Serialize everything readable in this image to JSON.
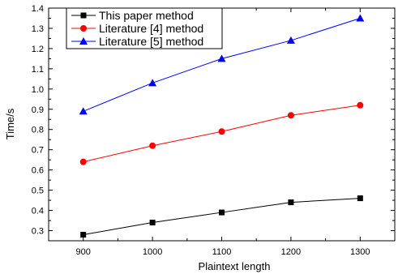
{
  "chart_data": {
    "type": "line",
    "title": "",
    "xlabel": "Plaintext length",
    "ylabel": "Time/s",
    "x": [
      900,
      1000,
      1100,
      1200,
      1300
    ],
    "xlim": [
      850,
      1350
    ],
    "ylim": [
      0.25,
      1.4
    ],
    "x_ticks": [
      900,
      1000,
      1100,
      1200,
      1300
    ],
    "y_ticks": [
      0.3,
      0.4,
      0.5,
      0.6,
      0.7,
      0.8,
      0.9,
      1.0,
      1.1,
      1.2,
      1.3,
      1.4
    ],
    "y_tick_labels": [
      "0.3",
      "0.4",
      "0.5",
      "0.6",
      "0.7",
      "0.8",
      "0.9",
      "1.0",
      "1.1",
      "1.2",
      "1.3",
      "1.4"
    ],
    "grid": false,
    "legend_position": "top-left",
    "series": [
      {
        "name": "This paper method",
        "color": "#000000",
        "marker": "square",
        "values": [
          0.28,
          0.34,
          0.39,
          0.44,
          0.46
        ]
      },
      {
        "name": "Literature [4] method",
        "color": "#ff0000",
        "marker": "circle",
        "values": [
          0.64,
          0.72,
          0.79,
          0.87,
          0.92
        ]
      },
      {
        "name": "Literature [5] method",
        "color": "#0000ff",
        "marker": "triangle",
        "values": [
          0.89,
          1.03,
          1.15,
          1.24,
          1.35
        ]
      }
    ]
  }
}
